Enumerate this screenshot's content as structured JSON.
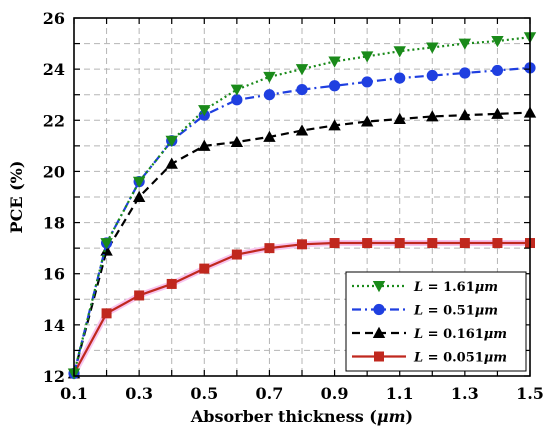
{
  "chart_data": {
    "type": "line",
    "xlabel_prefix": "Absorber thickness (",
    "xlabel_unit": "μm",
    "xlabel_suffix": ")",
    "ylabel": "PCE (%)",
    "xlim": [
      0.1,
      1.5
    ],
    "ylim": [
      12,
      26
    ],
    "x_ticks": [
      "0.1",
      "0.3",
      "0.5",
      "0.7",
      "0.9",
      "1.1",
      "1.3",
      "1.5"
    ],
    "y_ticks": [
      "12",
      "14",
      "16",
      "18",
      "20",
      "22",
      "24",
      "26"
    ],
    "grid": true,
    "legend_position": "bottom-right",
    "x": [
      0.1,
      0.2,
      0.3,
      0.4,
      0.5,
      0.6,
      0.7,
      0.8,
      0.9,
      1.0,
      1.1,
      1.2,
      1.3,
      1.4,
      1.5
    ],
    "series": [
      {
        "name": "L = 1.61μm",
        "legend_var": "L",
        "legend_value": " = 1.61",
        "legend_unit": "μm",
        "color": "#1a8a1a",
        "dash": "dotted",
        "marker": "triangle-down",
        "values": [
          12.1,
          17.2,
          19.6,
          21.2,
          22.4,
          23.2,
          23.7,
          24.0,
          24.3,
          24.5,
          24.7,
          24.85,
          25.0,
          25.1,
          25.25
        ]
      },
      {
        "name": "L = 0.51μm",
        "legend_var": "L",
        "legend_value": " = 0.51",
        "legend_unit": "μm",
        "color": "#1f3fe0",
        "dash": "dashdot",
        "marker": "circle",
        "values": [
          12.1,
          17.2,
          19.6,
          21.2,
          22.2,
          22.8,
          23.0,
          23.2,
          23.35,
          23.5,
          23.65,
          23.75,
          23.85,
          23.95,
          24.05
        ]
      },
      {
        "name": "L = 0.161μm",
        "legend_var": "L",
        "legend_value": " = 0.161",
        "legend_unit": "μm",
        "color": "#000000",
        "dash": "dashed",
        "marker": "triangle-up",
        "values": [
          12.1,
          16.9,
          19.0,
          20.3,
          21.0,
          21.15,
          21.35,
          21.6,
          21.8,
          21.95,
          22.05,
          22.15,
          22.2,
          22.25,
          22.3
        ]
      },
      {
        "name": "L = 0.051μm",
        "legend_var": "L",
        "legend_value": " = 0.051",
        "legend_unit": "μm",
        "color": "#c0281e",
        "dash": "solid",
        "marker": "square",
        "values": [
          12.1,
          14.45,
          15.15,
          15.6,
          16.2,
          16.75,
          17.0,
          17.15,
          17.2,
          17.2,
          17.2,
          17.2,
          17.2,
          17.2,
          17.2
        ]
      }
    ]
  }
}
